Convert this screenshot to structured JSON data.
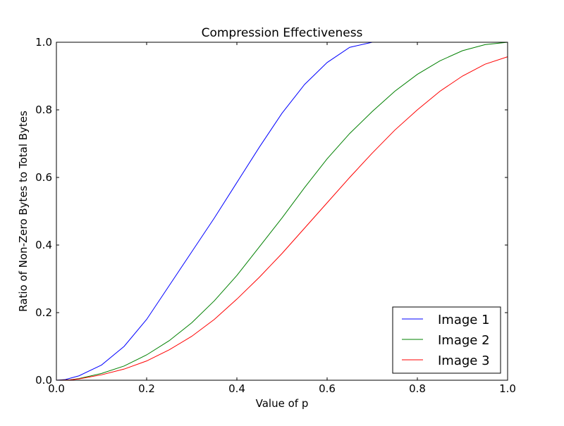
{
  "colors": {
    "background": "#ffffff",
    "axes": "#000000",
    "image1": "#0000ff",
    "image2": "#008000",
    "image3": "#ff0000"
  },
  "chart_data": {
    "type": "line",
    "title": "Compression Effectiveness",
    "xlabel": "Value of p",
    "ylabel": "Ratio of Non-Zero Bytes to Total Bytes",
    "xlim": [
      0.0,
      1.0
    ],
    "ylim": [
      0.0,
      1.0
    ],
    "xticks": [
      "0.0",
      "0.2",
      "0.4",
      "0.6",
      "0.8",
      "1.0"
    ],
    "yticks": [
      "0.0",
      "0.2",
      "0.4",
      "0.6",
      "0.8",
      "1.0"
    ],
    "grid": false,
    "legend_position": "lower-right",
    "series": [
      {
        "name": "Image 1",
        "color": "#0000ff",
        "x": [
          0.0,
          0.02,
          0.05,
          0.1,
          0.15,
          0.2,
          0.25,
          0.3,
          0.35,
          0.4,
          0.45,
          0.5,
          0.55,
          0.6,
          0.65,
          0.7,
          0.75,
          0.8,
          0.9,
          1.0
        ],
        "y": [
          0.0,
          0.002,
          0.013,
          0.045,
          0.1,
          0.18,
          0.28,
          0.38,
          0.48,
          0.585,
          0.69,
          0.79,
          0.875,
          0.94,
          0.985,
          1.0,
          1.0,
          1.0,
          1.0,
          1.0
        ]
      },
      {
        "name": "Image 2",
        "color": "#008000",
        "x": [
          0.0,
          0.03,
          0.05,
          0.1,
          0.15,
          0.2,
          0.25,
          0.3,
          0.35,
          0.4,
          0.45,
          0.5,
          0.55,
          0.6,
          0.65,
          0.7,
          0.75,
          0.8,
          0.85,
          0.9,
          0.95,
          1.0
        ],
        "y": [
          0.0,
          0.001,
          0.005,
          0.02,
          0.042,
          0.075,
          0.117,
          0.17,
          0.235,
          0.31,
          0.395,
          0.48,
          0.57,
          0.655,
          0.73,
          0.795,
          0.855,
          0.905,
          0.945,
          0.975,
          0.993,
          1.0
        ]
      },
      {
        "name": "Image 3",
        "color": "#ff0000",
        "x": [
          0.0,
          0.03,
          0.05,
          0.1,
          0.15,
          0.2,
          0.25,
          0.3,
          0.35,
          0.4,
          0.45,
          0.5,
          0.55,
          0.6,
          0.65,
          0.7,
          0.75,
          0.8,
          0.85,
          0.9,
          0.95,
          1.0
        ],
        "y": [
          0.0,
          0.001,
          0.004,
          0.016,
          0.033,
          0.057,
          0.09,
          0.13,
          0.18,
          0.24,
          0.305,
          0.375,
          0.45,
          0.525,
          0.6,
          0.672,
          0.74,
          0.8,
          0.855,
          0.9,
          0.935,
          0.957
        ]
      }
    ]
  }
}
